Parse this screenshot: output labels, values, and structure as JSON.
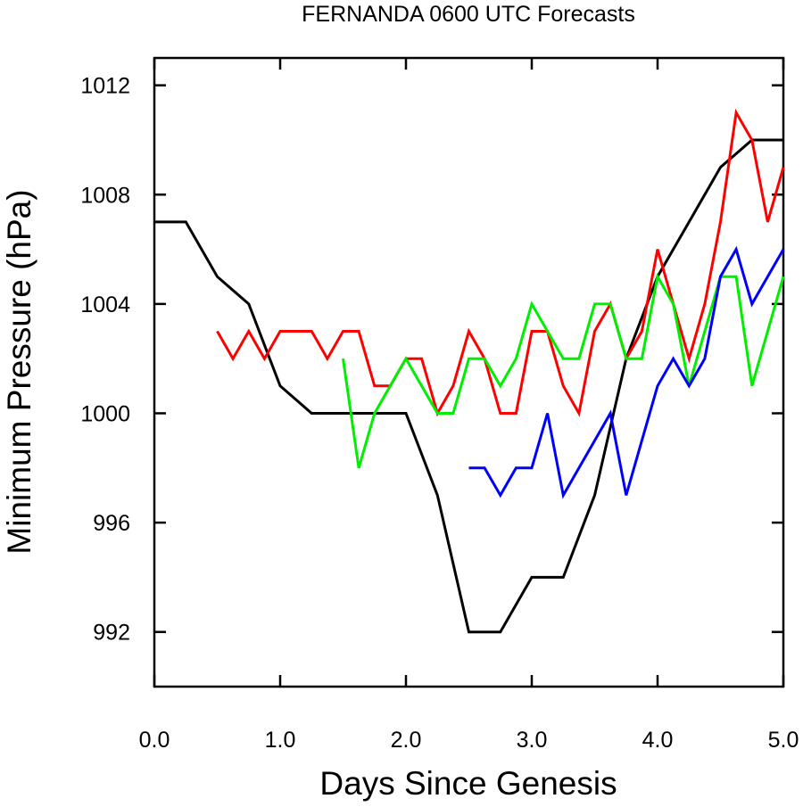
{
  "chart_data": {
    "type": "line",
    "title": "FERNANDA 0600 UTC Forecasts",
    "xlabel": "Days Since Genesis",
    "ylabel": "Minimum Pressure (hPa)",
    "xlim": [
      0.0,
      5.0
    ],
    "ylim": [
      990,
      1013
    ],
    "x_ticks": [
      0.0,
      1.0,
      2.0,
      3.0,
      4.0,
      5.0
    ],
    "x_tick_labels": [
      "0.0",
      "1.0",
      "2.0",
      "3.0",
      "4.0",
      "5.0"
    ],
    "y_ticks": [
      992,
      996,
      1000,
      1004,
      1008,
      1012
    ],
    "y_tick_labels": [
      "992",
      "996",
      "1000",
      "1004",
      "1008",
      "1012"
    ],
    "grid": false,
    "legend": "none",
    "series": [
      {
        "color": "#000000",
        "points": [
          [
            0.0,
            1007
          ],
          [
            0.25,
            1007
          ],
          [
            0.5,
            1005
          ],
          [
            0.75,
            1004
          ],
          [
            1.0,
            1001
          ],
          [
            1.25,
            1000
          ],
          [
            1.5,
            1000
          ],
          [
            1.75,
            1000
          ],
          [
            2.0,
            1000
          ],
          [
            2.25,
            997
          ],
          [
            2.5,
            992
          ],
          [
            2.75,
            992
          ],
          [
            3.0,
            994
          ],
          [
            3.25,
            994
          ],
          [
            3.5,
            997
          ],
          [
            3.75,
            1002
          ],
          [
            4.0,
            1005
          ],
          [
            4.25,
            1007
          ],
          [
            4.5,
            1009
          ],
          [
            4.75,
            1010
          ],
          [
            5.0,
            1010
          ]
        ]
      },
      {
        "color": "#ff0000",
        "points": [
          [
            0.5,
            1003
          ],
          [
            0.625,
            1002
          ],
          [
            0.75,
            1003
          ],
          [
            0.875,
            1002
          ],
          [
            1.0,
            1003
          ],
          [
            1.125,
            1003
          ],
          [
            1.25,
            1003
          ],
          [
            1.375,
            1002
          ],
          [
            1.5,
            1003
          ],
          [
            1.625,
            1003
          ],
          [
            1.75,
            1001
          ],
          [
            1.875,
            1001
          ],
          [
            2.0,
            1002
          ],
          [
            2.125,
            1002
          ],
          [
            2.25,
            1000
          ],
          [
            2.375,
            1001
          ],
          [
            2.5,
            1003
          ],
          [
            2.625,
            1002
          ],
          [
            2.75,
            1000
          ],
          [
            2.875,
            1000
          ],
          [
            3.0,
            1003
          ],
          [
            3.125,
            1003
          ],
          [
            3.25,
            1001
          ],
          [
            3.375,
            1000
          ],
          [
            3.5,
            1003
          ],
          [
            3.625,
            1004
          ],
          [
            3.75,
            1002
          ],
          [
            3.875,
            1003
          ],
          [
            4.0,
            1006
          ],
          [
            4.125,
            1004
          ],
          [
            4.25,
            1002
          ],
          [
            4.375,
            1004
          ],
          [
            4.5,
            1007
          ],
          [
            4.625,
            1011
          ],
          [
            4.75,
            1010
          ],
          [
            4.875,
            1007
          ],
          [
            5.0,
            1009
          ]
        ]
      },
      {
        "color": "#00ee00",
        "points": [
          [
            1.5,
            1002
          ],
          [
            1.625,
            998
          ],
          [
            1.75,
            1000
          ],
          [
            1.875,
            1001
          ],
          [
            2.0,
            1002
          ],
          [
            2.125,
            1001
          ],
          [
            2.25,
            1000
          ],
          [
            2.375,
            1000
          ],
          [
            2.5,
            1002
          ],
          [
            2.625,
            1002
          ],
          [
            2.75,
            1001
          ],
          [
            2.875,
            1002
          ],
          [
            3.0,
            1004
          ],
          [
            3.125,
            1003
          ],
          [
            3.25,
            1002
          ],
          [
            3.375,
            1002
          ],
          [
            3.5,
            1004
          ],
          [
            3.625,
            1004
          ],
          [
            3.75,
            1002
          ],
          [
            3.875,
            1002
          ],
          [
            4.0,
            1005
          ],
          [
            4.125,
            1004
          ],
          [
            4.25,
            1001
          ],
          [
            4.375,
            1003
          ],
          [
            4.5,
            1005
          ],
          [
            4.625,
            1005
          ],
          [
            4.75,
            1001
          ],
          [
            4.875,
            1003
          ],
          [
            5.0,
            1005
          ]
        ]
      },
      {
        "color": "#0000ff",
        "points": [
          [
            2.5,
            998
          ],
          [
            2.625,
            998
          ],
          [
            2.75,
            997
          ],
          [
            2.875,
            998
          ],
          [
            3.0,
            998
          ],
          [
            3.125,
            1000
          ],
          [
            3.25,
            997
          ],
          [
            3.375,
            998
          ],
          [
            3.5,
            999
          ],
          [
            3.625,
            1000
          ],
          [
            3.75,
            997
          ],
          [
            3.875,
            999
          ],
          [
            4.0,
            1001
          ],
          [
            4.125,
            1002
          ],
          [
            4.25,
            1001
          ],
          [
            4.375,
            1002
          ],
          [
            4.5,
            1005
          ],
          [
            4.625,
            1006
          ],
          [
            4.75,
            1004
          ],
          [
            4.875,
            1005
          ],
          [
            5.0,
            1006
          ]
        ]
      }
    ]
  }
}
